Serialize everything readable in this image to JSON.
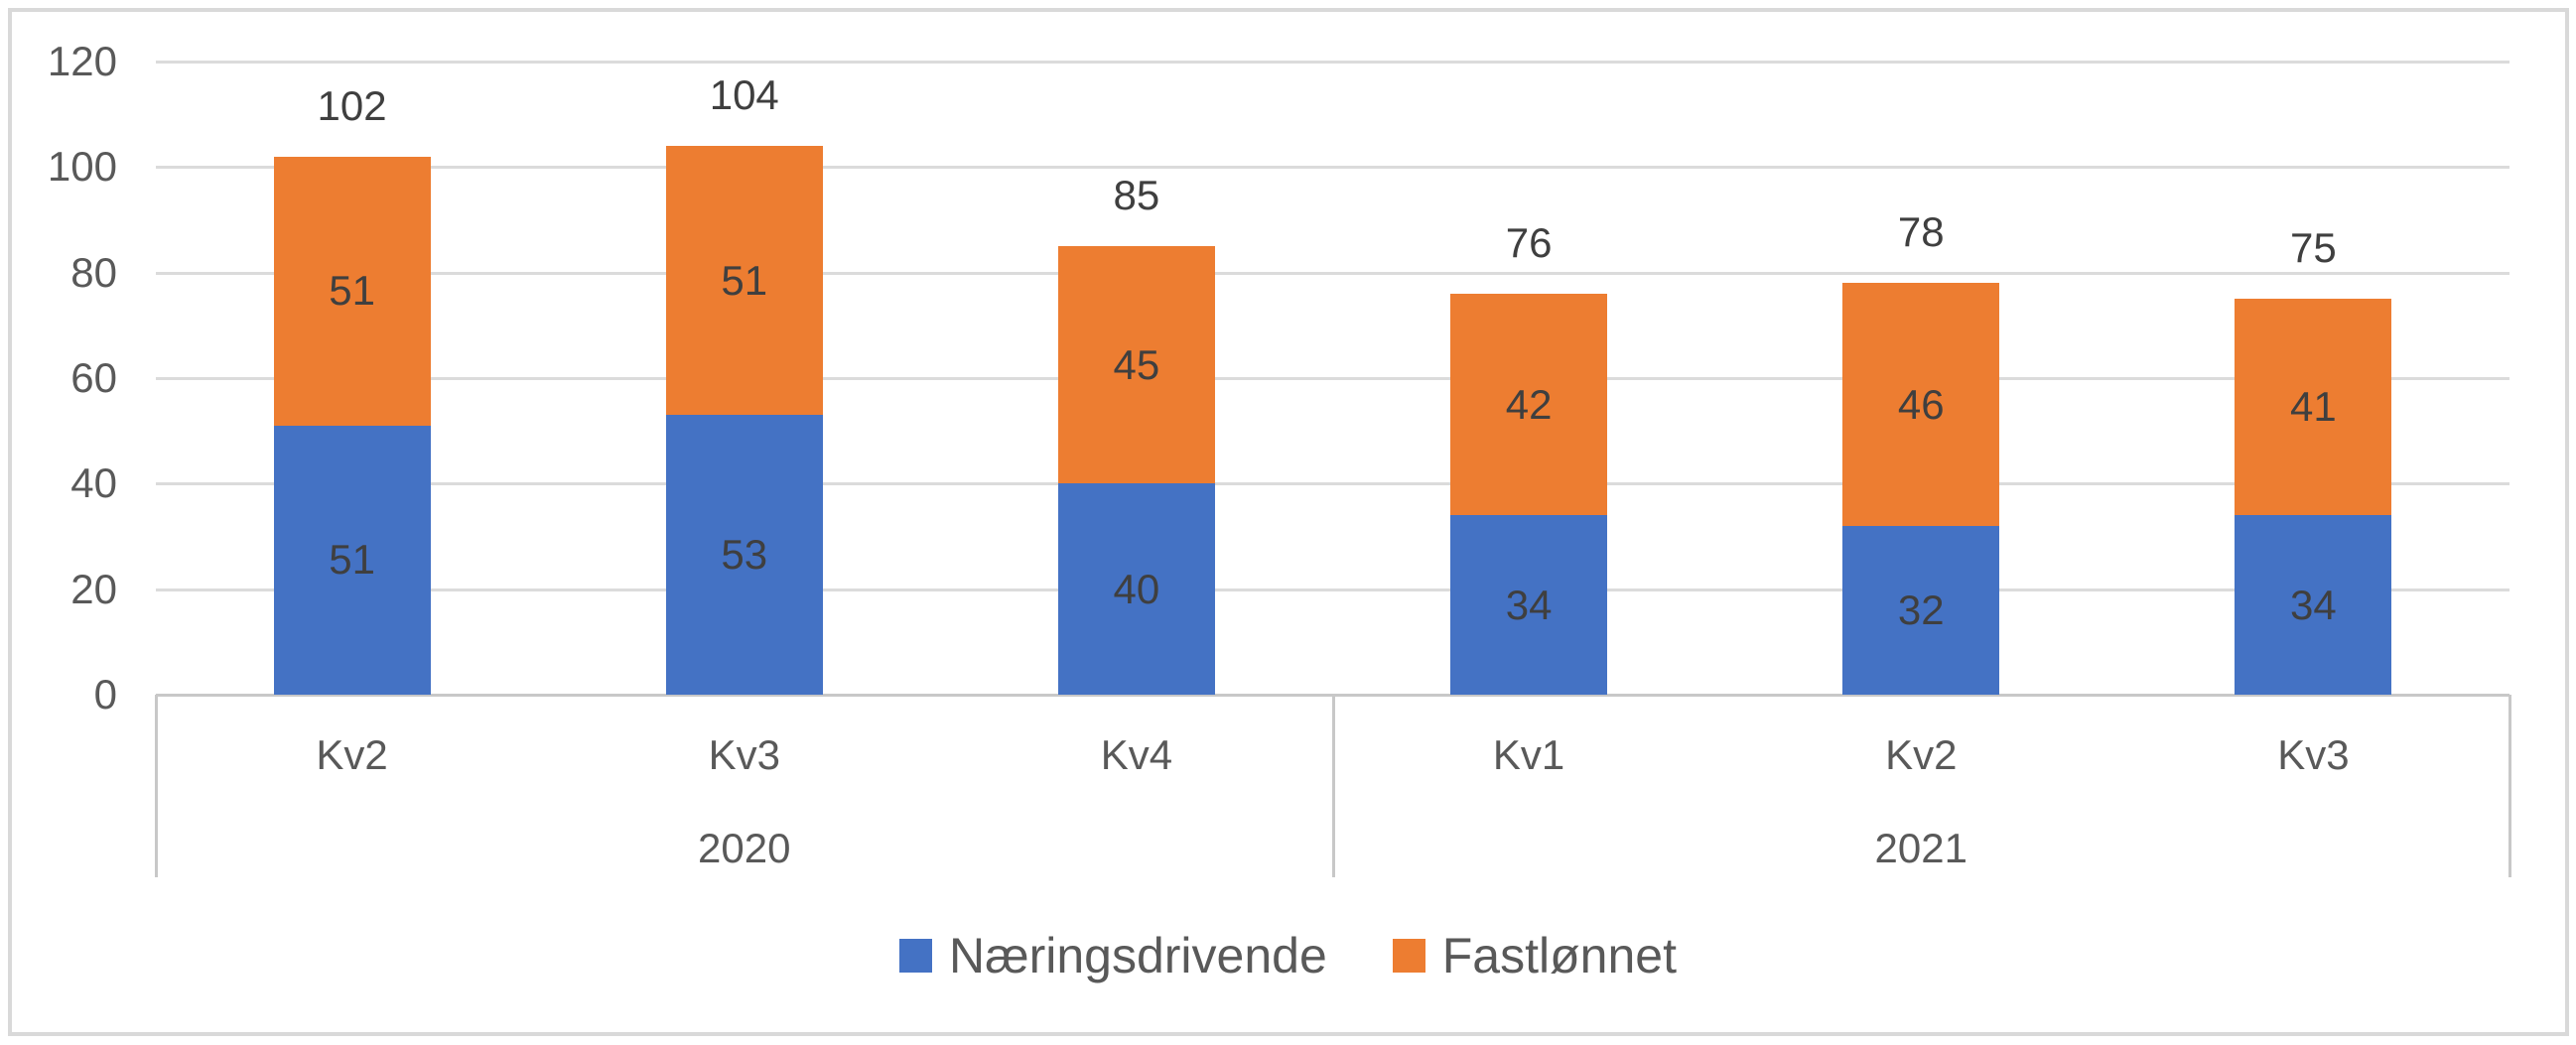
{
  "chart_data": {
    "type": "bar",
    "stacked": true,
    "title": "",
    "xlabel": "",
    "ylabel": "",
    "categories": [
      "Kv2",
      "Kv3",
      "Kv4",
      "Kv1",
      "Kv2",
      "Kv3"
    ],
    "category_groups": [
      {
        "label": "2020",
        "from": 0,
        "to": 3
      },
      {
        "label": "2021",
        "from": 3,
        "to": 6
      }
    ],
    "series": [
      {
        "name": "Næringsdrivende",
        "color": "#4472C4",
        "values": [
          51,
          53,
          40,
          34,
          32,
          34
        ]
      },
      {
        "name": "Fastlønnet",
        "color": "#ED7D31",
        "values": [
          51,
          51,
          45,
          42,
          46,
          41
        ]
      }
    ],
    "totals": [
      102,
      104,
      85,
      76,
      78,
      75
    ],
    "ylim": [
      0,
      120
    ],
    "ytick_step": 20,
    "ytick_labels": [
      "0",
      "20",
      "40",
      "60",
      "80",
      "100",
      "120"
    ],
    "grid": true,
    "legend_position": "bottom"
  },
  "colors": {
    "gridline": "#DBDBDB",
    "axis_line": "#C8C8C8",
    "tick_text": "#595959",
    "data_label_text": "#3F3F3F",
    "frame_border": "#D9D9D9",
    "background": "#FFFFFF"
  }
}
